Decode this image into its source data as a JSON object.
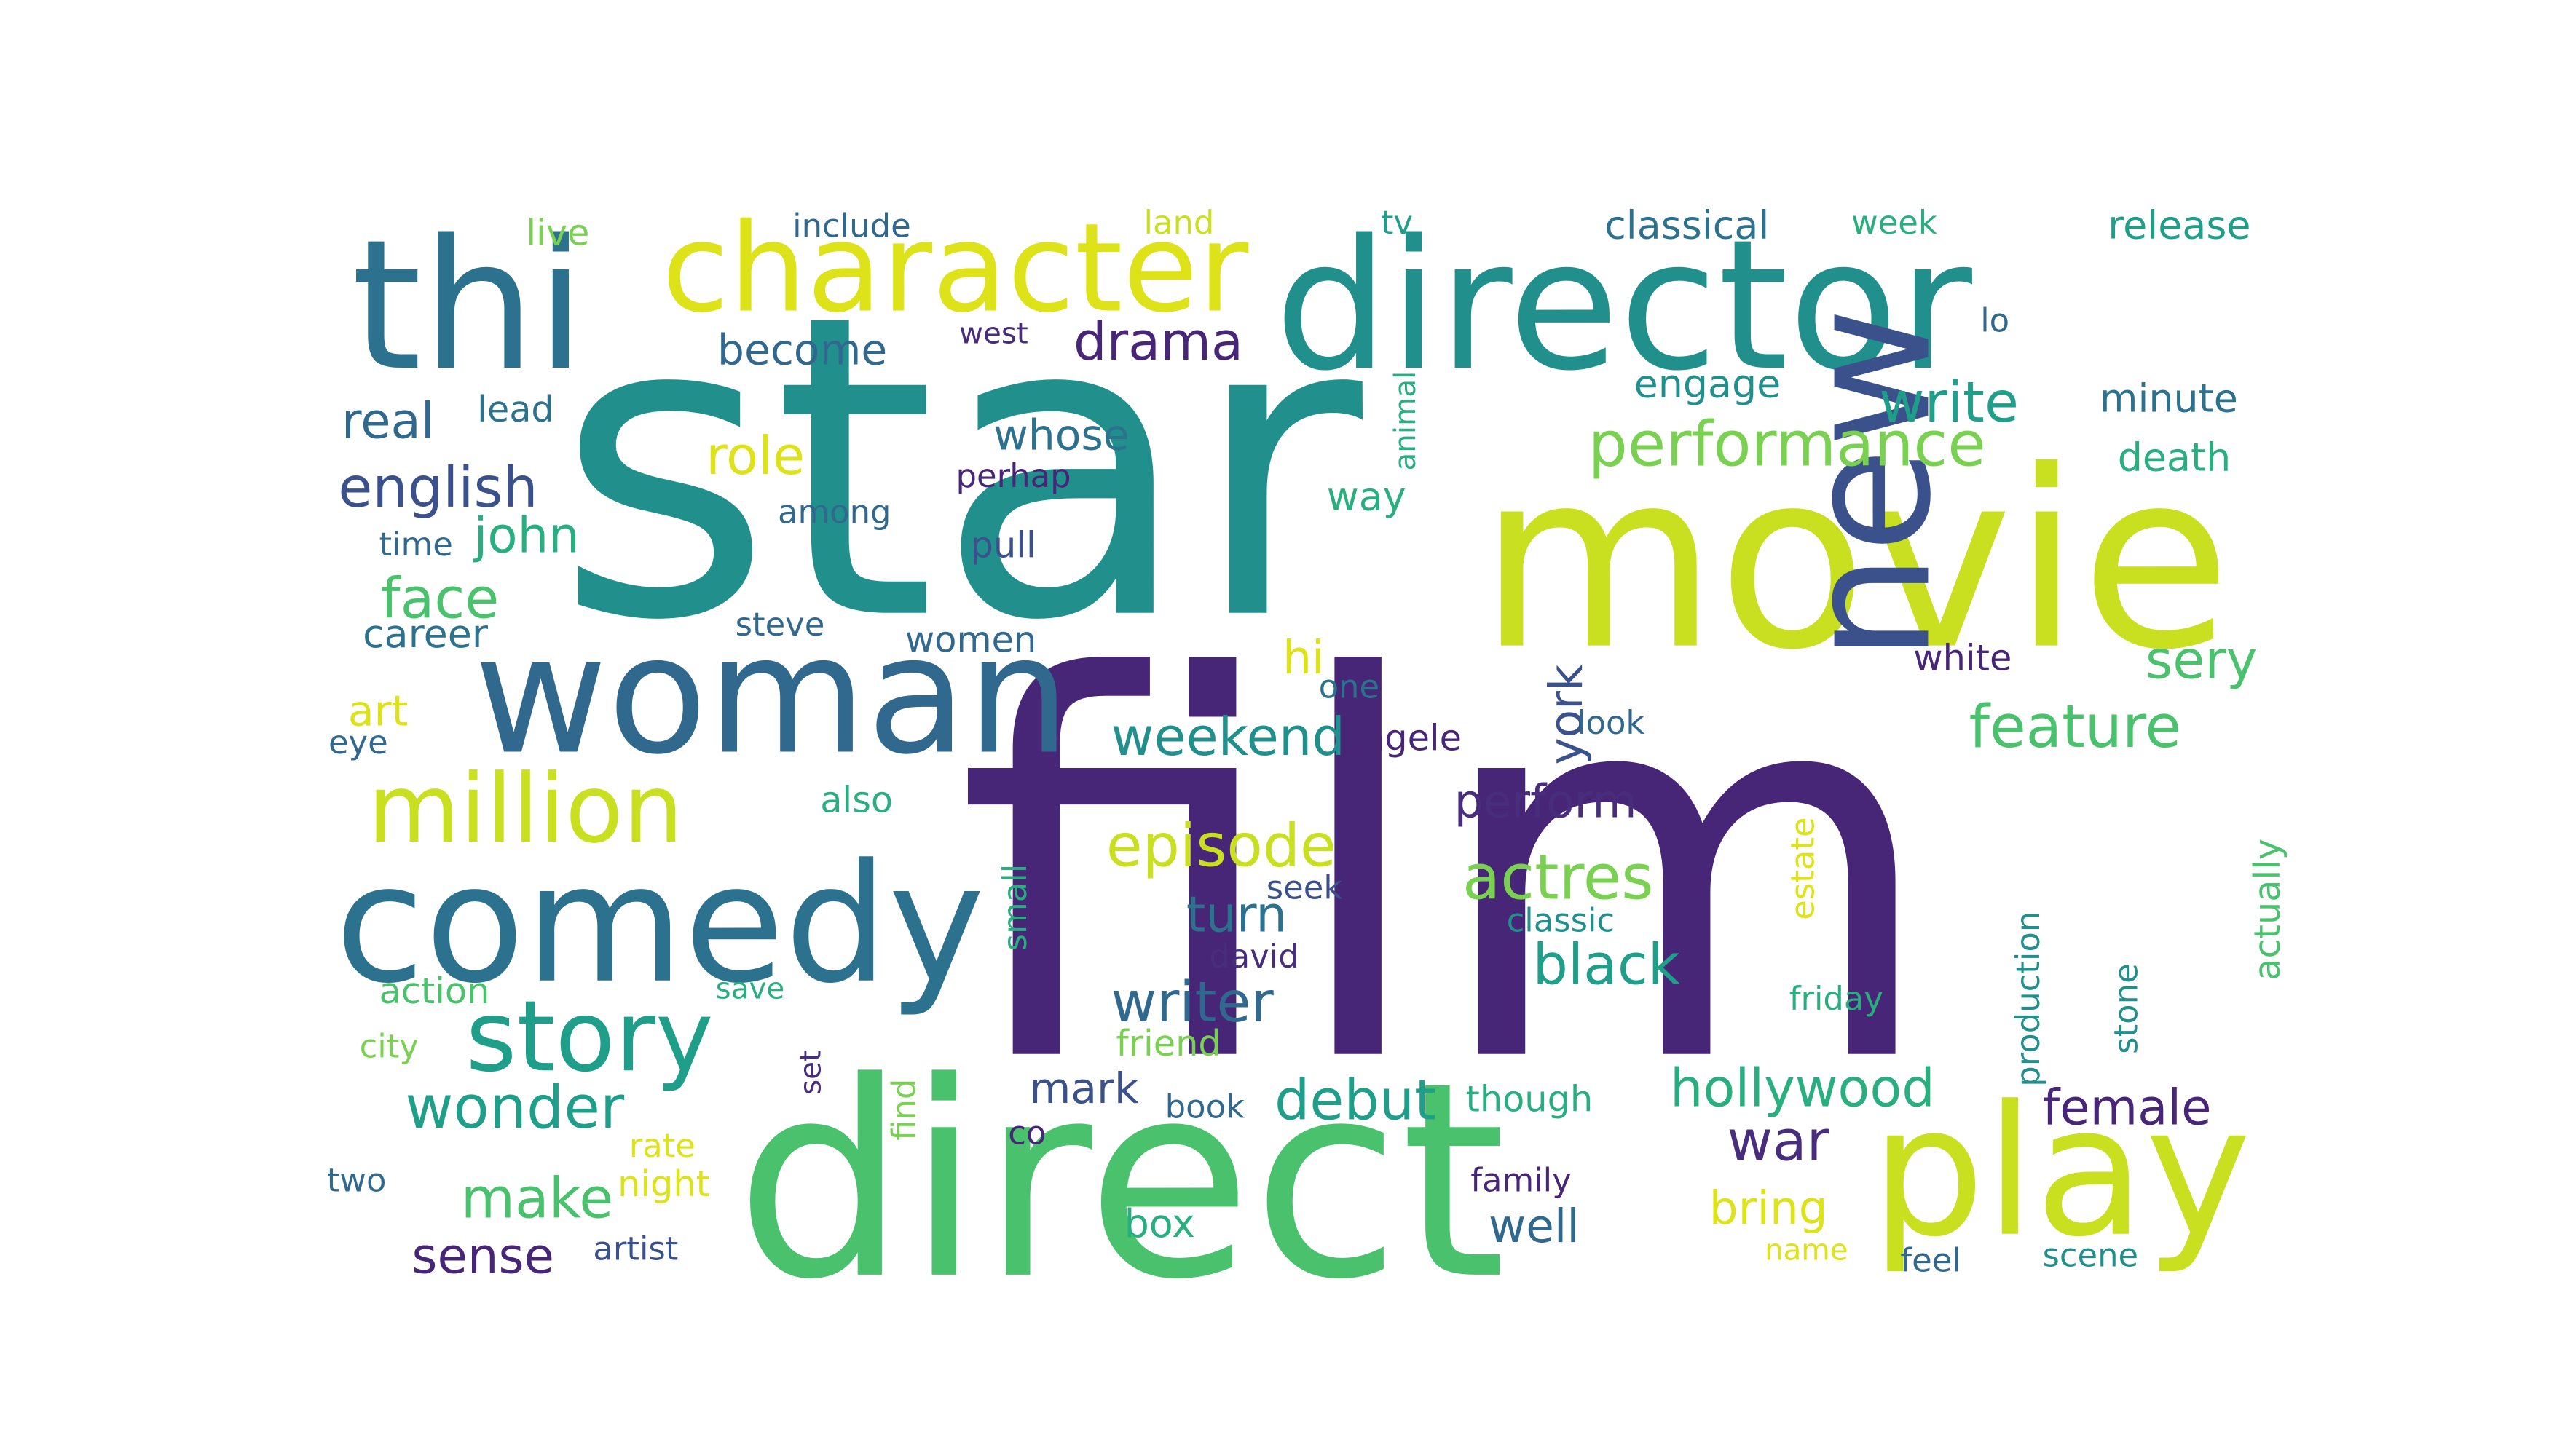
{
  "palette": {
    "deep_purple": "#482677",
    "purple": "#472d7b",
    "indigo": "#3b518b",
    "slate_blue": "#31688e",
    "blue_teal": "#2c728e",
    "teal": "#21908d",
    "teal_green": "#1f9e89",
    "green_teal": "#29af7f",
    "green": "#4ac16d",
    "light_green": "#7ad151",
    "lime": "#a8db34",
    "yellow_green": "#c8e020",
    "yellow": "#dde318"
  },
  "words": [
    {
      "text": "star"
    },
    {
      "text": "film"
    },
    {
      "text": "direct"
    },
    {
      "text": "movie"
    },
    {
      "text": "director"
    },
    {
      "text": "thi"
    },
    {
      "text": "character"
    },
    {
      "text": "woman"
    },
    {
      "text": "comedy"
    },
    {
      "text": "new"
    },
    {
      "text": "play"
    },
    {
      "text": "million"
    },
    {
      "text": "story"
    },
    {
      "text": "performance"
    },
    {
      "text": "write"
    },
    {
      "text": "feature"
    },
    {
      "text": "episode"
    },
    {
      "text": "actres"
    },
    {
      "text": "wonder"
    },
    {
      "text": "english"
    },
    {
      "text": "drama"
    },
    {
      "text": "role"
    },
    {
      "text": "sery"
    },
    {
      "text": "hollywood"
    },
    {
      "text": "debut"
    },
    {
      "text": "writer"
    },
    {
      "text": "black"
    },
    {
      "text": "weekend"
    },
    {
      "text": "make"
    },
    {
      "text": "female"
    },
    {
      "text": "war"
    },
    {
      "text": "face"
    },
    {
      "text": "real"
    },
    {
      "text": "john"
    },
    {
      "text": "become"
    },
    {
      "text": "whose"
    },
    {
      "text": "engage"
    },
    {
      "text": "classical"
    },
    {
      "text": "release"
    },
    {
      "text": "minute"
    },
    {
      "text": "death"
    },
    {
      "text": "perform"
    },
    {
      "text": "turn"
    },
    {
      "text": "sense"
    },
    {
      "text": "well"
    },
    {
      "text": "bring"
    },
    {
      "text": "mark"
    },
    {
      "text": "career"
    },
    {
      "text": "art"
    },
    {
      "text": "hi"
    },
    {
      "text": "york"
    },
    {
      "text": "include"
    },
    {
      "text": "live"
    },
    {
      "text": "land"
    },
    {
      "text": "tv"
    },
    {
      "text": "week"
    },
    {
      "text": "lo"
    },
    {
      "text": "west"
    },
    {
      "text": "lead"
    },
    {
      "text": "perhap"
    },
    {
      "text": "among"
    },
    {
      "text": "time"
    },
    {
      "text": "pull"
    },
    {
      "text": "way"
    },
    {
      "text": "animal"
    },
    {
      "text": "steve"
    },
    {
      "text": "women"
    },
    {
      "text": "white"
    },
    {
      "text": "one"
    },
    {
      "text": "look"
    },
    {
      "text": "eye"
    },
    {
      "text": "angele"
    },
    {
      "text": "also"
    },
    {
      "text": "estate"
    },
    {
      "text": "actually"
    },
    {
      "text": "seek"
    },
    {
      "text": "classic"
    },
    {
      "text": "small"
    },
    {
      "text": "production"
    },
    {
      "text": "david"
    },
    {
      "text": "action"
    },
    {
      "text": "save"
    },
    {
      "text": "friday"
    },
    {
      "text": "stone"
    },
    {
      "text": "friend"
    },
    {
      "text": "city"
    },
    {
      "text": "set"
    },
    {
      "text": "find"
    },
    {
      "text": "book"
    },
    {
      "text": "though"
    },
    {
      "text": "rate"
    },
    {
      "text": "co"
    },
    {
      "text": "night"
    },
    {
      "text": "family"
    },
    {
      "text": "two"
    },
    {
      "text": "box"
    },
    {
      "text": "artist"
    },
    {
      "text": "name"
    },
    {
      "text": "feel"
    },
    {
      "text": "scene"
    }
  ]
}
